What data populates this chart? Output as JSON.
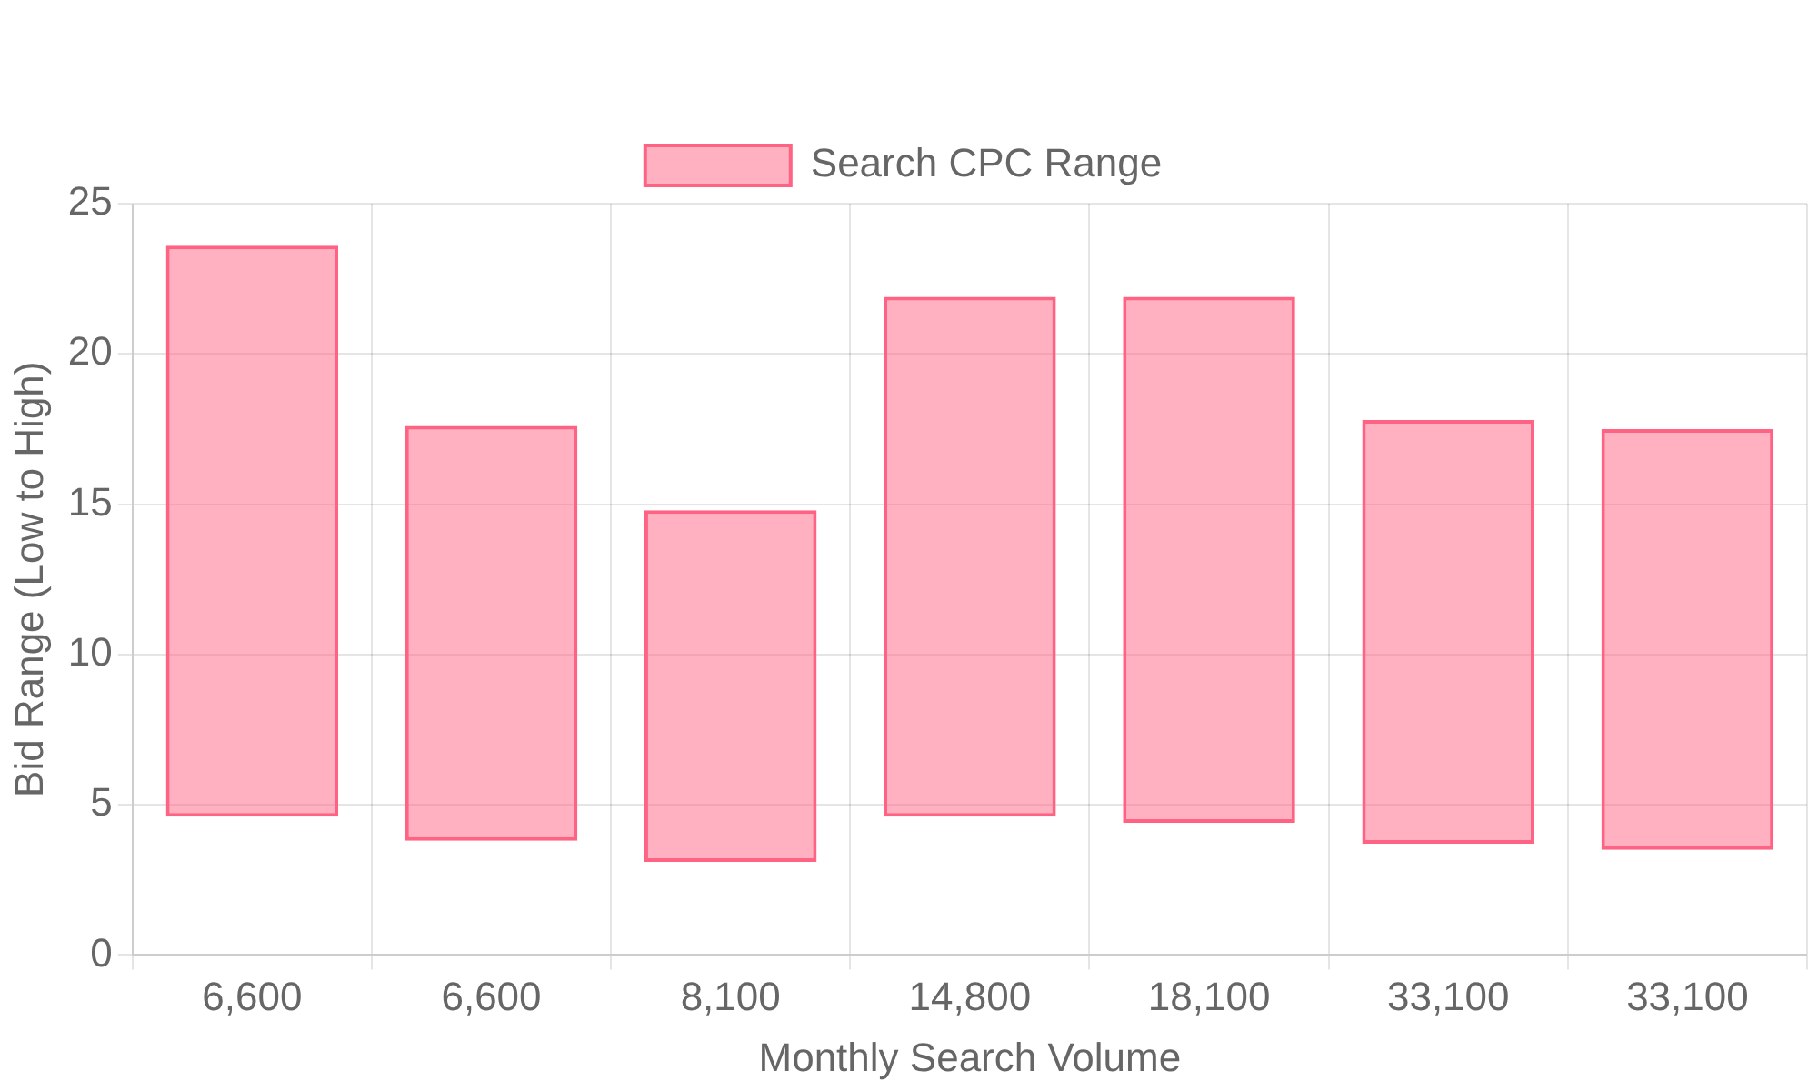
{
  "chart_data": {
    "type": "bar",
    "xlabel": "Monthly Search Volume",
    "ylabel": "Bid Range (Low to High)",
    "categories": [
      "6,600",
      "6,600",
      "8,100",
      "14,800",
      "18,100",
      "33,100",
      "33,100"
    ],
    "series": [
      {
        "name": "Search CPC Range",
        "color": "#ff6384",
        "base": [
          4.6,
          3.8,
          3.1,
          4.6,
          4.4,
          3.7,
          3.5
        ],
        "values": [
          19,
          13.8,
          11.7,
          17.3,
          17.5,
          14.1,
          14
        ]
      }
    ],
    "ylim": [
      0,
      25
    ],
    "yticks": [
      0,
      5,
      10,
      15,
      20,
      25
    ],
    "grid": true,
    "legend": "top"
  }
}
